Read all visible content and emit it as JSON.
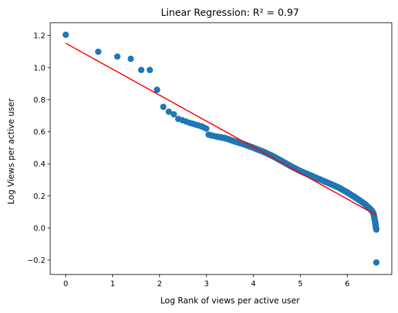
{
  "chart_data": {
    "type": "scatter",
    "title": "Linear Regression: R² = 0.97",
    "xlabel": "Log Rank of views per active user",
    "ylabel": "Log Views per active user",
    "xlim": [
      -0.33,
      6.95
    ],
    "ylim": [
      -0.29,
      1.28
    ],
    "grid": false,
    "x_ticks": [
      0,
      1,
      2,
      3,
      4,
      5,
      6
    ],
    "x_tick_labels": [
      "0",
      "1",
      "2",
      "3",
      "4",
      "5",
      "6"
    ],
    "y_ticks": [
      -0.2,
      0.0,
      0.2,
      0.4,
      0.6,
      0.8,
      1.0,
      1.2
    ],
    "y_tick_labels": [
      "−0.2",
      "0.0",
      "0.2",
      "0.4",
      "0.6",
      "0.8",
      "1.0",
      "1.2"
    ],
    "point_color": "#1f77b4",
    "line_color": "#ff0000",
    "discrete_points": [
      [
        0.0,
        1.205
      ],
      [
        0.693,
        1.099
      ],
      [
        1.099,
        1.069
      ],
      [
        1.386,
        1.055
      ],
      [
        1.609,
        0.985
      ],
      [
        1.792,
        0.985
      ],
      [
        1.946,
        0.862
      ],
      [
        2.079,
        0.755
      ],
      [
        2.197,
        0.725
      ],
      [
        2.303,
        0.709
      ],
      [
        2.398,
        0.68
      ],
      [
        2.485,
        0.672
      ],
      [
        2.565,
        0.664
      ],
      [
        2.639,
        0.656
      ],
      [
        2.708,
        0.65
      ],
      [
        2.773,
        0.644
      ],
      [
        2.833,
        0.639
      ],
      [
        2.89,
        0.634
      ],
      [
        2.944,
        0.627
      ],
      [
        2.996,
        0.62
      ],
      [
        3.045,
        0.582
      ],
      [
        3.091,
        0.578
      ],
      [
        3.135,
        0.575
      ]
    ],
    "curve_anchors": [
      [
        3.2,
        0.571
      ],
      [
        3.4,
        0.56
      ],
      [
        3.6,
        0.54
      ],
      [
        3.8,
        0.522
      ],
      [
        4.0,
        0.5
      ],
      [
        4.2,
        0.477
      ],
      [
        4.4,
        0.45
      ],
      [
        4.6,
        0.418
      ],
      [
        4.8,
        0.385
      ],
      [
        5.0,
        0.355
      ],
      [
        5.2,
        0.33
      ],
      [
        5.4,
        0.305
      ],
      [
        5.6,
        0.28
      ],
      [
        5.8,
        0.255
      ],
      [
        6.0,
        0.222
      ],
      [
        6.2,
        0.185
      ],
      [
        6.35,
        0.155
      ],
      [
        6.45,
        0.13
      ],
      [
        6.52,
        0.11
      ],
      [
        6.56,
        0.09
      ],
      [
        6.58,
        0.06
      ],
      [
        6.6,
        0.03
      ],
      [
        6.61,
        0.005
      ],
      [
        6.62,
        -0.01
      ]
    ],
    "outlier": [
      6.62,
      -0.215
    ],
    "fit_line": {
      "x": [
        0.0,
        6.62
      ],
      "y": [
        1.152,
        0.08
      ]
    }
  }
}
